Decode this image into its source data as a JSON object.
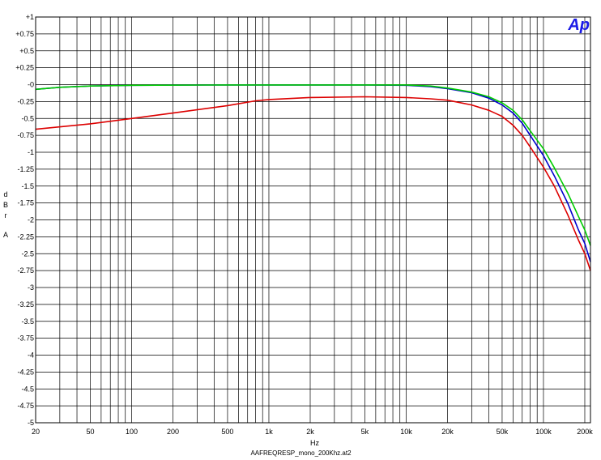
{
  "chart_data": {
    "type": "line",
    "xscale": "log",
    "xlim": [
      20,
      220000
    ],
    "ylim": [
      -5,
      1
    ],
    "xlabel": "Hz",
    "ylabel_letters": [
      "d",
      "B",
      "r",
      "",
      "A"
    ],
    "logo": "Ap",
    "footer": "AAFREQRESP_mono_200Khz.at2",
    "grid": true,
    "x_ticks": [
      {
        "v": 20,
        "label": "20"
      },
      {
        "v": 50,
        "label": "50"
      },
      {
        "v": 100,
        "label": "100"
      },
      {
        "v": 200,
        "label": "200"
      },
      {
        "v": 500,
        "label": "500"
      },
      {
        "v": 1000,
        "label": "1k"
      },
      {
        "v": 2000,
        "label": "2k"
      },
      {
        "v": 5000,
        "label": "5k"
      },
      {
        "v": 10000,
        "label": "10k"
      },
      {
        "v": 20000,
        "label": "20k"
      },
      {
        "v": 50000,
        "label": "50k"
      },
      {
        "v": 100000,
        "label": "100k"
      },
      {
        "v": 200000,
        "label": "200k"
      }
    ],
    "y_ticks": [
      {
        "v": 1,
        "label": "+1"
      },
      {
        "v": 0.75,
        "label": "+0.75"
      },
      {
        "v": 0.5,
        "label": "+0.5"
      },
      {
        "v": 0.25,
        "label": "+0.25"
      },
      {
        "v": 0,
        "label": "-0"
      },
      {
        "v": -0.25,
        "label": "-0.25"
      },
      {
        "v": -0.5,
        "label": "-0.5"
      },
      {
        "v": -0.75,
        "label": "-0.75"
      },
      {
        "v": -1,
        "label": "-1"
      },
      {
        "v": -1.25,
        "label": "-1.25"
      },
      {
        "v": -1.5,
        "label": "-1.5"
      },
      {
        "v": -1.75,
        "label": "-1.75"
      },
      {
        "v": -2,
        "label": "-2"
      },
      {
        "v": -2.25,
        "label": "-2.25"
      },
      {
        "v": -2.5,
        "label": "-2.5"
      },
      {
        "v": -2.75,
        "label": "-2.75"
      },
      {
        "v": -3,
        "label": "-3"
      },
      {
        "v": -3.25,
        "label": "-3.25"
      },
      {
        "v": -3.5,
        "label": "-3.5"
      },
      {
        "v": -3.75,
        "label": "-3.75"
      },
      {
        "v": -4,
        "label": "-4"
      },
      {
        "v": -4.25,
        "label": "-4.25"
      },
      {
        "v": -4.5,
        "label": "-4.5"
      },
      {
        "v": -4.75,
        "label": "-4.75"
      },
      {
        "v": -5,
        "label": "-5"
      }
    ],
    "series": [
      {
        "color": "#0000cc",
        "points": [
          [
            20,
            -0.07
          ],
          [
            30,
            -0.04
          ],
          [
            50,
            -0.02
          ],
          [
            100,
            -0.01
          ],
          [
            500,
            -0.005
          ],
          [
            1000,
            -0.005
          ],
          [
            5000,
            -0.005
          ],
          [
            10000,
            -0.01
          ],
          [
            15000,
            -0.03
          ],
          [
            20000,
            -0.06
          ],
          [
            30000,
            -0.12
          ],
          [
            40000,
            -0.2
          ],
          [
            50000,
            -0.3
          ],
          [
            60000,
            -0.42
          ],
          [
            70000,
            -0.57
          ],
          [
            80000,
            -0.75
          ],
          [
            100000,
            -1.05
          ],
          [
            120000,
            -1.35
          ],
          [
            150000,
            -1.75
          ],
          [
            180000,
            -2.15
          ],
          [
            200000,
            -2.35
          ],
          [
            220000,
            -2.62
          ]
        ]
      },
      {
        "color": "#00cc00",
        "points": [
          [
            20,
            -0.07
          ],
          [
            30,
            -0.04
          ],
          [
            50,
            -0.02
          ],
          [
            100,
            -0.01
          ],
          [
            500,
            -0.005
          ],
          [
            1000,
            -0.005
          ],
          [
            5000,
            -0.005
          ],
          [
            10000,
            -0.005
          ],
          [
            15000,
            -0.02
          ],
          [
            20000,
            -0.05
          ],
          [
            30000,
            -0.11
          ],
          [
            40000,
            -0.18
          ],
          [
            50000,
            -0.27
          ],
          [
            60000,
            -0.38
          ],
          [
            70000,
            -0.52
          ],
          [
            80000,
            -0.68
          ],
          [
            100000,
            -0.95
          ],
          [
            120000,
            -1.23
          ],
          [
            150000,
            -1.6
          ],
          [
            180000,
            -1.95
          ],
          [
            200000,
            -2.15
          ],
          [
            220000,
            -2.38
          ]
        ]
      },
      {
        "color": "#dd0000",
        "points": [
          [
            20,
            -0.66
          ],
          [
            50,
            -0.58
          ],
          [
            100,
            -0.5
          ],
          [
            200,
            -0.42
          ],
          [
            500,
            -0.31
          ],
          [
            800,
            -0.24
          ],
          [
            1000,
            -0.22
          ],
          [
            2000,
            -0.19
          ],
          [
            5000,
            -0.18
          ],
          [
            10000,
            -0.19
          ],
          [
            15000,
            -0.21
          ],
          [
            20000,
            -0.23
          ],
          [
            30000,
            -0.3
          ],
          [
            40000,
            -0.38
          ],
          [
            50000,
            -0.47
          ],
          [
            60000,
            -0.6
          ],
          [
            70000,
            -0.75
          ],
          [
            80000,
            -0.92
          ],
          [
            100000,
            -1.22
          ],
          [
            120000,
            -1.5
          ],
          [
            150000,
            -1.92
          ],
          [
            180000,
            -2.3
          ],
          [
            200000,
            -2.5
          ],
          [
            220000,
            -2.75
          ]
        ]
      }
    ]
  }
}
